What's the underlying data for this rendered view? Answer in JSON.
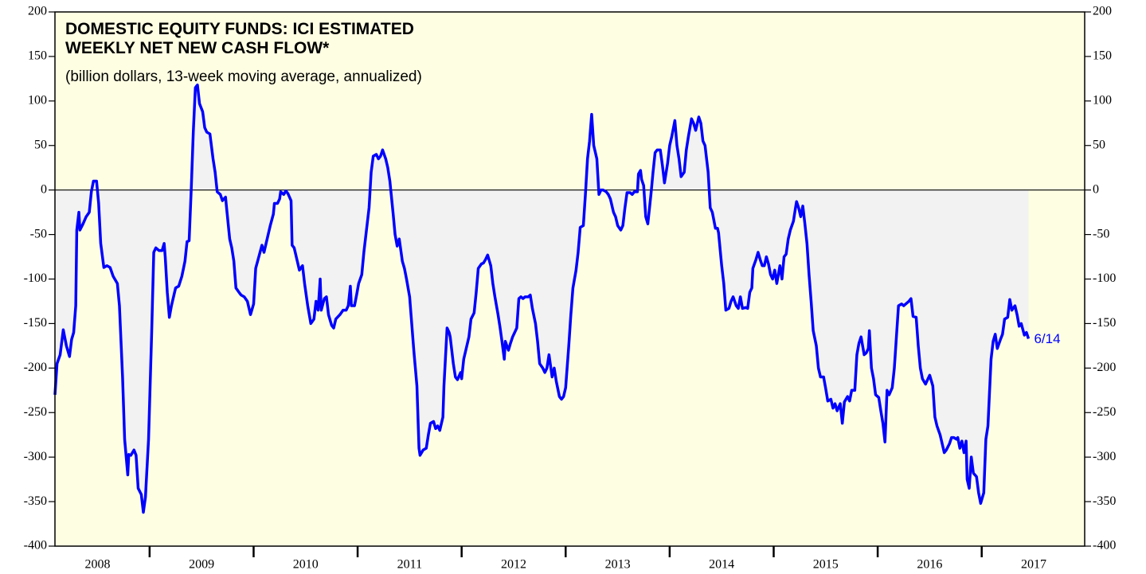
{
  "chart_data": {
    "type": "line",
    "title_lines": [
      "DOMESTIC EQUITY FUNDS: ICI ESTIMATED",
      "WEEKLY NET NEW CASH FLOW*"
    ],
    "subtitle": "(billion dollars, 13-week moving average, annualized)",
    "annotation": "6/14",
    "xlim": [
      2008.09,
      2017.99
    ],
    "xticks": [
      2008,
      2009,
      2010,
      2011,
      2012,
      2013,
      2014,
      2015,
      2016,
      2017
    ],
    "ylim": [
      -400,
      200
    ],
    "yticks": [
      200,
      150,
      100,
      50,
      0,
      -50,
      -100,
      -150,
      -200,
      -250,
      -300,
      -350,
      -400
    ],
    "series": [
      {
        "color": "#0000ff",
        "x": [
          2008.09,
          2008.11,
          2008.14,
          2008.17,
          2008.2,
          2008.23,
          2008.25,
          2008.27,
          2008.29,
          2008.3,
          2008.32,
          2008.33,
          2008.36,
          2008.39,
          2008.42,
          2008.44,
          2008.46,
          2008.49,
          2008.51,
          2008.53,
          2008.56,
          2008.59,
          2008.62,
          2008.65,
          2008.69,
          2008.71,
          2008.74,
          2008.76,
          2008.79,
          2008.8,
          2008.82,
          2008.85,
          2008.87,
          2008.89,
          2008.92,
          2008.94,
          2008.96,
          2008.99,
          2009.02,
          2009.04,
          2009.06,
          2009.09,
          2009.12,
          2009.14,
          2009.15,
          2009.17,
          2009.19,
          2009.21,
          2009.25,
          2009.28,
          2009.31,
          2009.34,
          2009.36,
          2009.38,
          2009.4,
          2009.42,
          2009.44,
          2009.46,
          2009.48,
          2009.51,
          2009.53,
          2009.55,
          2009.58,
          2009.61,
          2009.63,
          2009.65,
          2009.68,
          2009.7,
          2009.73,
          2009.74,
          2009.77,
          2009.79,
          2009.81,
          2009.83,
          2009.86,
          2009.88,
          2009.91,
          2009.94,
          2009.97,
          2010.0,
          2010.02,
          2010.05,
          2010.08,
          2010.1,
          2010.13,
          2010.16,
          2010.19,
          2010.2,
          2010.23,
          2010.25,
          2010.26,
          2010.29,
          2010.31,
          2010.33,
          2010.36,
          2010.37,
          2010.39,
          2010.42,
          2010.44,
          2010.47,
          2010.49,
          2010.52,
          2010.55,
          2010.58,
          2010.6,
          2010.62,
          2010.64,
          2010.65,
          2010.68,
          2010.7,
          2010.72,
          2010.75,
          2010.77,
          2010.79,
          2010.83,
          2010.86,
          2010.89,
          2010.91,
          2010.93,
          2010.94,
          2010.97,
          2010.99,
          2011.01,
          2011.04,
          2011.06,
          2011.08,
          2011.11,
          2011.13,
          2011.15,
          2011.18,
          2011.2,
          2011.22,
          2011.24,
          2011.27,
          2011.29,
          2011.31,
          2011.34,
          2011.36,
          2011.38,
          2011.4,
          2011.43,
          2011.45,
          2011.47,
          2011.5,
          2011.52,
          2011.54,
          2011.57,
          2011.59,
          2011.6,
          2011.63,
          2011.66,
          2011.68,
          2011.7,
          2011.73,
          2011.75,
          2011.77,
          2011.79,
          2011.82,
          2011.83,
          2011.86,
          2011.88,
          2011.89,
          2011.92,
          2011.94,
          2011.96,
          2011.99,
          2012.0,
          2012.02,
          2012.05,
          2012.07,
          2012.09,
          2012.12,
          2012.14,
          2012.16,
          2012.19,
          2012.21,
          2012.23,
          2012.25,
          2012.28,
          2012.3,
          2012.32,
          2012.35,
          2012.37,
          2012.39,
          2012.41,
          2012.42,
          2012.45,
          2012.47,
          2012.49,
          2012.51,
          2012.53,
          2012.55,
          2012.57,
          2012.59,
          2012.61,
          2012.64,
          2012.66,
          2012.68,
          2012.71,
          2012.73,
          2012.75,
          2012.78,
          2012.8,
          2012.82,
          2012.84,
          2012.87,
          2012.89,
          2012.91,
          2012.94,
          2012.96,
          2012.98,
          2013.0,
          2013.03,
          2013.05,
          2013.07,
          2013.1,
          2013.12,
          2013.14,
          2013.17,
          2013.19,
          2013.21,
          2013.23,
          2013.25,
          2013.27,
          2013.3,
          2013.32,
          2013.34,
          2013.36,
          2013.39,
          2013.41,
          2013.43,
          2013.46,
          2013.48,
          2013.5,
          2013.53,
          2013.55,
          2013.57,
          2013.59,
          2013.62,
          2013.64,
          2013.66,
          2013.69,
          2013.7,
          2013.72,
          2013.73,
          2013.75,
          2013.77,
          2013.79,
          2013.82,
          2013.84,
          2013.86,
          2013.88,
          2013.91,
          2013.93,
          2013.95,
          2013.98,
          2014.0,
          2014.02,
          2014.05,
          2014.07,
          2014.09,
          2014.11,
          2014.14,
          2014.16,
          2014.18,
          2014.21,
          2014.23,
          2014.25,
          2014.28,
          2014.3,
          2014.32,
          2014.34,
          2014.37,
          2014.39,
          2014.41,
          2014.44,
          2014.46,
          2014.47,
          2014.5,
          2014.52,
          2014.54,
          2014.57,
          2014.59,
          2014.61,
          2014.64,
          2014.66,
          2014.68,
          2014.7,
          2014.73,
          2014.75,
          2014.77,
          2014.79,
          2014.8,
          2014.83,
          2014.85,
          2014.87,
          2014.89,
          2014.91,
          2014.93,
          2014.95,
          2014.97,
          2014.99,
          2015.01,
          2015.03,
          2015.06,
          2015.08,
          2015.1,
          2015.12,
          2015.14,
          2015.16,
          2015.19,
          2015.21,
          2015.22,
          2015.24,
          2015.26,
          2015.28,
          2015.3,
          2015.32,
          2015.34,
          2015.36,
          2015.38,
          2015.41,
          2015.43,
          2015.45,
          2015.48,
          2015.5,
          2015.52,
          2015.55,
          2015.57,
          2015.59,
          2015.61,
          2015.64,
          2015.66,
          2015.68,
          2015.71,
          2015.73,
          2015.75,
          2015.78,
          2015.8,
          2015.82,
          2015.84,
          2015.87,
          2015.89,
          2015.91,
          2015.92,
          2015.94,
          2015.96,
          2015.98,
          2016.01,
          2016.03,
          2016.05,
          2016.07,
          2016.09,
          2016.11,
          2016.14,
          2016.16,
          2016.18,
          2016.2,
          2016.23,
          2016.25,
          2016.27,
          2016.3,
          2016.32,
          2016.34,
          2016.37,
          2016.39,
          2016.41,
          2016.43,
          2016.46,
          2016.48,
          2016.5,
          2016.53,
          2016.55,
          2016.57,
          2016.6,
          2016.62,
          2016.64,
          2016.66,
          2016.69,
          2016.71,
          2016.73,
          2016.76,
          2016.77,
          2016.79,
          2016.81,
          2016.83,
          2016.85,
          2016.86,
          2016.88,
          2016.9,
          2016.92,
          2016.95,
          2016.97,
          2016.99,
          2017.02,
          2017.04,
          2017.06,
          2017.09,
          2017.11,
          2017.13,
          2017.15,
          2017.18,
          2017.2,
          2017.22,
          2017.25,
          2017.27,
          2017.29,
          2017.32,
          2017.34,
          2017.36,
          2017.38,
          2017.41,
          2017.43,
          2017.45
        ],
        "values": [
          -230,
          -195,
          -185,
          -157,
          -175,
          -187,
          -168,
          -160,
          -130,
          -45,
          -25,
          -45,
          -38,
          -30,
          -25,
          -2,
          10,
          10,
          -15,
          -60,
          -87,
          -85,
          -87,
          -97,
          -105,
          -130,
          -210,
          -280,
          -320,
          -297,
          -298,
          -292,
          -298,
          -335,
          -342,
          -362,
          -345,
          -280,
          -160,
          -70,
          -65,
          -68,
          -68,
          -60,
          -75,
          -115,
          -143,
          -130,
          -110,
          -108,
          -97,
          -80,
          -58,
          -57,
          0,
          65,
          115,
          118,
          97,
          88,
          70,
          65,
          63,
          35,
          20,
          -2,
          -5,
          -12,
          -8,
          -20,
          -55,
          -65,
          -80,
          -110,
          -115,
          -118,
          -120,
          -125,
          -140,
          -128,
          -88,
          -75,
          -62,
          -70,
          -55,
          -40,
          -27,
          -15,
          -15,
          -10,
          -2,
          -5,
          -1,
          -4,
          -12,
          -62,
          -65,
          -80,
          -90,
          -85,
          -105,
          -130,
          -150,
          -145,
          -125,
          -135,
          -100,
          -135,
          -122,
          -120,
          -140,
          -152,
          -155,
          -145,
          -140,
          -135,
          -135,
          -130,
          -108,
          -130,
          -130,
          -118,
          -105,
          -95,
          -70,
          -50,
          -20,
          20,
          38,
          40,
          35,
          38,
          45,
          35,
          25,
          10,
          -25,
          -50,
          -63,
          -55,
          -80,
          -88,
          -100,
          -120,
          -150,
          -180,
          -220,
          -290,
          -298,
          -292,
          -290,
          -275,
          -262,
          -260,
          -268,
          -265,
          -270,
          -255,
          -220,
          -155,
          -160,
          -165,
          -195,
          -210,
          -213,
          -205,
          -212,
          -190,
          -175,
          -165,
          -145,
          -138,
          -115,
          -88,
          -83,
          -82,
          -78,
          -73,
          -85,
          -105,
          -120,
          -140,
          -155,
          -172,
          -190,
          -170,
          -180,
          -172,
          -165,
          -160,
          -155,
          -122,
          -120,
          -122,
          -120,
          -120,
          -118,
          -133,
          -150,
          -170,
          -195,
          -200,
          -205,
          -200,
          -185,
          -210,
          -200,
          -215,
          -232,
          -235,
          -232,
          -222,
          -175,
          -140,
          -110,
          -90,
          -70,
          -42,
          -40,
          -5,
          35,
          55,
          85,
          50,
          35,
          -5,
          0,
          0,
          -2,
          -5,
          -10,
          -25,
          -30,
          -40,
          -45,
          -40,
          -20,
          -3,
          -3,
          -5,
          -2,
          -2,
          18,
          22,
          12,
          5,
          -30,
          -38,
          -5,
          20,
          42,
          45,
          45,
          28,
          8,
          30,
          50,
          60,
          78,
          50,
          35,
          15,
          20,
          45,
          60,
          80,
          75,
          67,
          82,
          75,
          55,
          50,
          20,
          -20,
          -25,
          -43,
          -43,
          -48,
          -85,
          -105,
          -135,
          -133,
          -125,
          -120,
          -130,
          -133,
          -120,
          -133,
          -132,
          -133,
          -115,
          -110,
          -88,
          -78,
          -70,
          -78,
          -85,
          -85,
          -75,
          -83,
          -95,
          -100,
          -90,
          -105,
          -85,
          -100,
          -75,
          -72,
          -55,
          -45,
          -35,
          -20,
          -13,
          -20,
          -30,
          -18,
          -38,
          -60,
          -95,
          -125,
          -158,
          -175,
          -200,
          -210,
          -210,
          -223,
          -237,
          -235,
          -245,
          -240,
          -248,
          -240,
          -262,
          -238,
          -232,
          -237,
          -225,
          -225,
          -185,
          -172,
          -165,
          -185,
          -183,
          -178,
          -158,
          -200,
          -212,
          -230,
          -233,
          -248,
          -262,
          -283,
          -225,
          -230,
          -222,
          -200,
          -165,
          -130,
          -128,
          -130,
          -128,
          -125,
          -122,
          -142,
          -143,
          -175,
          -200,
          -212,
          -218,
          -213,
          -208,
          -220,
          -255,
          -265,
          -275,
          -285,
          -295,
          -292,
          -285,
          -278,
          -278,
          -280,
          -278,
          -290,
          -282,
          -295,
          -282,
          -325,
          -335,
          -300,
          -318,
          -322,
          -340,
          -352,
          -340,
          -280,
          -265,
          -190,
          -170,
          -162,
          -178,
          -168,
          -162,
          -145,
          -143,
          -123,
          -135,
          -130,
          -140,
          -153,
          -150,
          -163,
          -160,
          -167
        ]
      }
    ]
  }
}
